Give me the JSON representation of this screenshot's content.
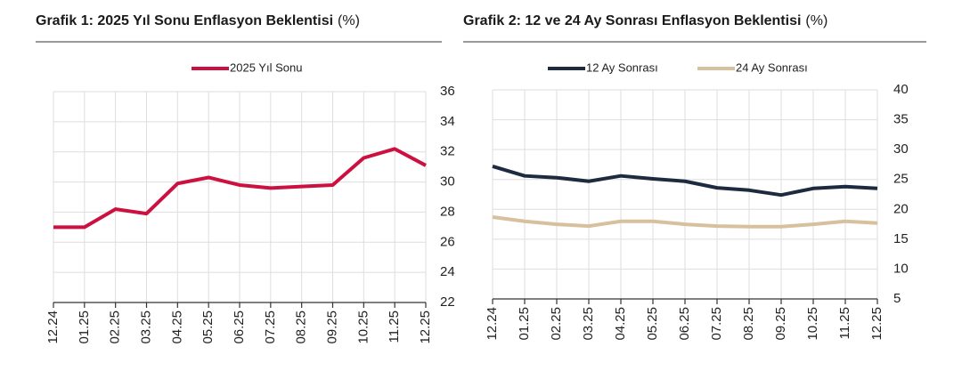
{
  "chart_data": [
    {
      "type": "line",
      "title": "Grafik 1: 2025 Yıl Sonu Enflasyon Beklentisi",
      "unit": "(%)",
      "categories": [
        "12.24",
        "01.25",
        "02.25",
        "03.25",
        "04.25",
        "05.25",
        "06.25",
        "07.25",
        "08.25",
        "09.25",
        "10.25",
        "11.25",
        "12.25"
      ],
      "series": [
        {
          "name": "2025 Yıl Sonu",
          "color": "#cc1140",
          "values": [
            27.0,
            27.0,
            28.2,
            27.9,
            29.9,
            30.3,
            29.8,
            29.6,
            29.7,
            29.8,
            31.6,
            32.2,
            31.1
          ]
        }
      ],
      "ylim": [
        22,
        36
      ],
      "yticks": [
        22,
        24,
        26,
        28,
        30,
        32,
        34,
        36
      ],
      "grid": true
    },
    {
      "type": "line",
      "title": "Grafik 2: 12 ve 24 Ay Sonrası Enflasyon Beklentisi",
      "unit": "(%)",
      "categories": [
        "12.24",
        "01.25",
        "02.25",
        "03.25",
        "04.25",
        "05.25",
        "06.25",
        "07.25",
        "08.25",
        "09.25",
        "10.25",
        "11.25",
        "12.25"
      ],
      "series": [
        {
          "name": "12 Ay Sonrası",
          "color": "#1d2b40",
          "values": [
            27.2,
            25.6,
            25.3,
            24.7,
            25.6,
            25.1,
            24.7,
            23.6,
            23.2,
            22.4,
            23.5,
            23.8,
            23.5
          ]
        },
        {
          "name": "24 Ay Sonrası",
          "color": "#d6c19c",
          "values": [
            18.7,
            18.0,
            17.5,
            17.2,
            18.0,
            18.0,
            17.5,
            17.2,
            17.1,
            17.1,
            17.5,
            18.0,
            17.7
          ]
        }
      ],
      "ylim": [
        5,
        40
      ],
      "yticks": [
        5,
        10,
        15,
        20,
        25,
        30,
        35,
        40
      ],
      "grid": true
    }
  ]
}
